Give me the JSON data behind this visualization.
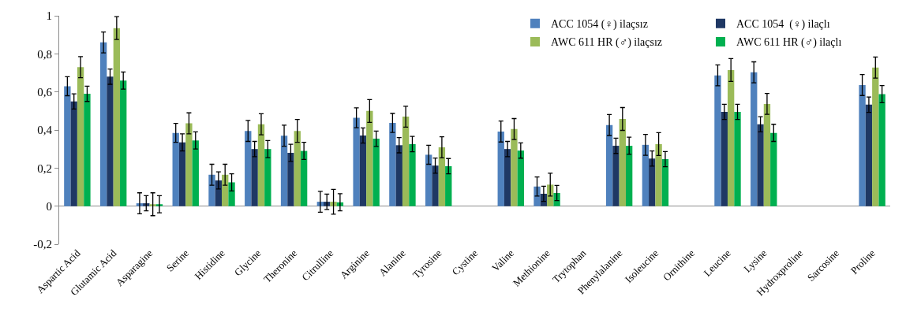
{
  "chart_data": {
    "type": "bar",
    "categories": [
      "Aspartic Acid",
      "Glutamic Acid",
      "Asparagine",
      "Serine",
      "Histidine",
      "Glycine",
      "Theronine",
      "Citrulline",
      "Arginine",
      "Alanine",
      "Tyrosine",
      "Cystine",
      "Valine",
      "Methionine",
      "Trytophan",
      "Phenylalanine",
      "Isoleucine",
      "Ornithine",
      "Leucine",
      "Lysine",
      "Hydroxproline",
      "Sarcosine",
      "Proline"
    ],
    "series": [
      {
        "name": "ACC 1054 (♀) ilaçsız",
        "color": "#4f81bd",
        "values": [
          0.63,
          0.86,
          0.015,
          0.385,
          0.165,
          0.395,
          0.37,
          0.023,
          0.464,
          0.437,
          0.27,
          null,
          0.392,
          0.103,
          null,
          0.426,
          0.322,
          null,
          0.687,
          0.703,
          null,
          null,
          0.636
        ],
        "errors": [
          0.05,
          0.055,
          0.055,
          0.05,
          0.055,
          0.055,
          0.055,
          0.055,
          0.052,
          0.05,
          0.05,
          null,
          0.055,
          0.05,
          null,
          0.055,
          0.055,
          null,
          0.055,
          0.055,
          null,
          null,
          0.055
        ]
      },
      {
        "name": "ACC 1054  (♀) ilaçlı",
        "color": "#1f3864",
        "values": [
          0.55,
          0.68,
          0.015,
          0.335,
          0.135,
          0.3,
          0.28,
          0.023,
          0.371,
          0.32,
          0.213,
          null,
          0.3,
          0.065,
          null,
          0.317,
          0.25,
          null,
          0.495,
          0.43,
          null,
          null,
          0.533
        ],
        "errors": [
          0.04,
          0.04,
          0.04,
          0.045,
          0.045,
          0.04,
          0.045,
          0.04,
          0.04,
          0.04,
          0.04,
          null,
          0.04,
          0.04,
          null,
          0.04,
          0.04,
          null,
          0.04,
          0.04,
          null,
          null,
          0.04
        ]
      },
      {
        "name": "AWC 611 HR (♂) ilaçsız",
        "color": "#9bbb59",
        "values": [
          0.73,
          0.935,
          0.01,
          0.435,
          0.165,
          0.43,
          0.395,
          0.023,
          0.5,
          0.47,
          0.309,
          null,
          0.405,
          0.113,
          null,
          0.458,
          0.326,
          null,
          0.715,
          0.537,
          null,
          null,
          0.728
        ],
        "errors": [
          0.055,
          0.06,
          0.06,
          0.055,
          0.055,
          0.055,
          0.06,
          0.065,
          0.06,
          0.055,
          0.055,
          null,
          0.055,
          0.06,
          null,
          0.06,
          0.06,
          null,
          0.06,
          0.055,
          null,
          null,
          0.055
        ]
      },
      {
        "name": "AWC 611 HR (♂) ilaçlı",
        "color": "#00b050",
        "values": [
          0.59,
          0.66,
          0.01,
          0.345,
          0.125,
          0.3,
          0.29,
          0.02,
          0.354,
          0.326,
          0.21,
          null,
          0.292,
          0.069,
          null,
          0.317,
          0.247,
          null,
          0.495,
          0.385,
          null,
          null,
          0.588
        ],
        "errors": [
          0.04,
          0.045,
          0.045,
          0.045,
          0.045,
          0.045,
          0.045,
          0.045,
          0.04,
          0.04,
          0.04,
          null,
          0.04,
          0.04,
          null,
          0.045,
          0.04,
          null,
          0.04,
          0.045,
          null,
          null,
          0.045
        ]
      }
    ],
    "ylim": [
      -0.2,
      1
    ],
    "yticks": [
      {
        "value": -0.2,
        "label": "-0,2"
      },
      0,
      {
        "value": 0.2,
        "label": "0,2"
      },
      {
        "value": 0.4,
        "label": "0,4"
      },
      {
        "value": 0.6,
        "label": "0,6"
      },
      {
        "value": 0.8,
        "label": "0,8"
      },
      1
    ],
    "legend": "top right"
  }
}
